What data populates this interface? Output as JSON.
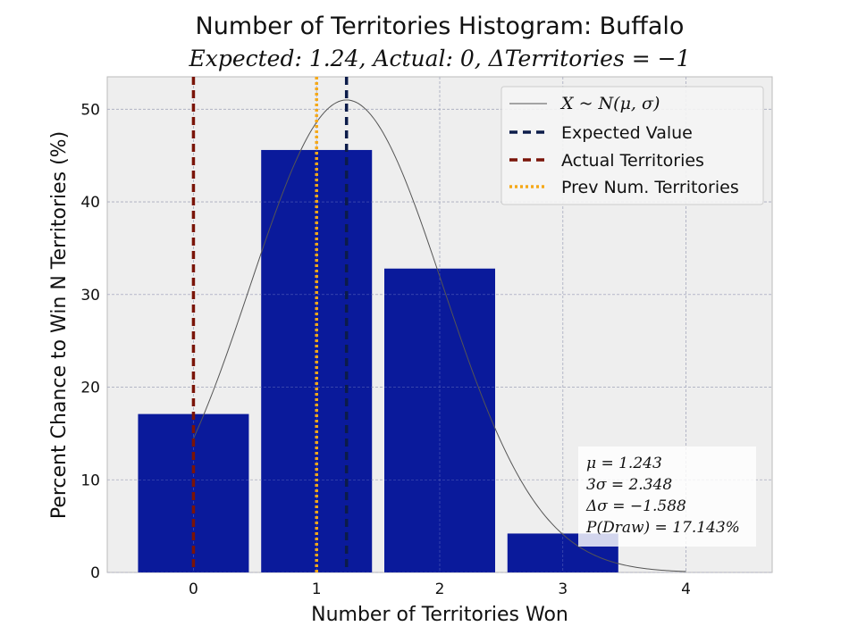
{
  "chart_data": {
    "type": "bar",
    "title": "Number of Territories Histogram: Buffalo",
    "subtitle": "Expected: 1.24, Actual: 0, ΔTerritories = −1",
    "xlabel": "Number of Territories Won",
    "ylabel": "Percent Chance to Win N Territories (%)",
    "categories": [
      0,
      1,
      2,
      3,
      4
    ],
    "values": [
      17.1,
      45.6,
      32.8,
      4.2,
      0
    ],
    "xlim": [
      -0.7,
      4.7
    ],
    "ylim": [
      0,
      53.5
    ],
    "xticks": [
      "0",
      "1",
      "2",
      "3",
      "4"
    ],
    "yticks": [
      "0",
      "10",
      "20",
      "30",
      "40",
      "50"
    ],
    "bar_color": "#0a1a9b",
    "grid": true,
    "legend_position": "top-right",
    "normal_curve": {
      "label": "X ~ N(μ, σ)",
      "mu": 1.243,
      "sigma": 0.7827,
      "peak_percent": 51.0,
      "x_range": [
        0,
        4
      ],
      "color": "#555555"
    },
    "vlines": [
      {
        "name": "Expected Value",
        "x": 1.243,
        "color": "#0c1c4a",
        "style": "dashed"
      },
      {
        "name": "Actual Territories",
        "x": 0,
        "color": "#7a1408",
        "style": "dashed"
      },
      {
        "name": "Prev Num. Territories",
        "x": 1,
        "color": "#f5a818",
        "style": "dotted"
      }
    ],
    "stats_box": {
      "lines": [
        "μ = 1.243",
        "3σ = 2.348",
        "Δσ = −1.588",
        "P(Draw) = 17.143%"
      ]
    }
  }
}
